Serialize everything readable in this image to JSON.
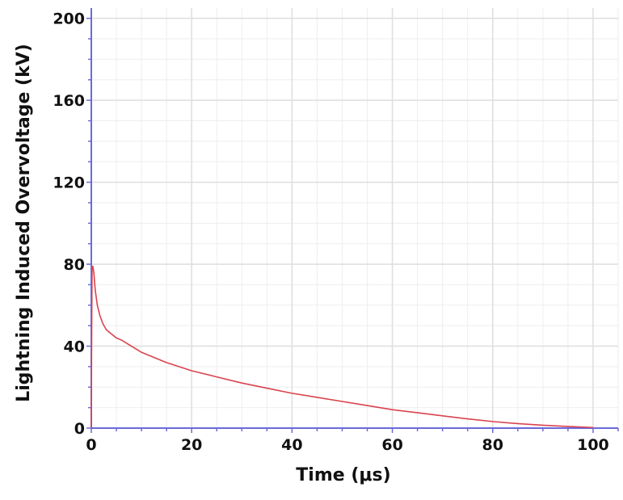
{
  "chart_data": {
    "type": "line",
    "title": "",
    "xlabel": "Time (μs)",
    "ylabel": "Lightning Induced Overvoltage (kV)",
    "xlim": [
      0,
      105
    ],
    "ylim": [
      0,
      205
    ],
    "x_ticks": [
      "0",
      "20",
      "40",
      "60",
      "80",
      "100"
    ],
    "y_ticks": [
      "0",
      "40",
      "80",
      "120",
      "160",
      "200"
    ],
    "grid": true,
    "legend": "none",
    "colors": {
      "series": "#d9434f",
      "axis": "#6a6adb",
      "grid": "#dedede",
      "grid_minor": "#eeeeee"
    },
    "series": [
      {
        "x": [
          0,
          0.05,
          0.15,
          0.3,
          0.5,
          0.8,
          1.2,
          1.7,
          2.3,
          3,
          4,
          5,
          6,
          8,
          10,
          12,
          15,
          20,
          25,
          30,
          35,
          40,
          45,
          50,
          55,
          60,
          65,
          70,
          75,
          80,
          85,
          90,
          95,
          100
        ],
        "values": [
          0,
          35,
          78,
          79,
          76,
          67,
          60,
          55,
          51,
          48,
          46,
          44,
          43,
          40,
          37,
          35,
          32,
          28,
          25,
          22,
          19.5,
          17,
          15,
          13,
          11,
          9,
          7.5,
          6,
          4.5,
          3.2,
          2.2,
          1.4,
          0.8,
          0.3
        ]
      }
    ]
  }
}
